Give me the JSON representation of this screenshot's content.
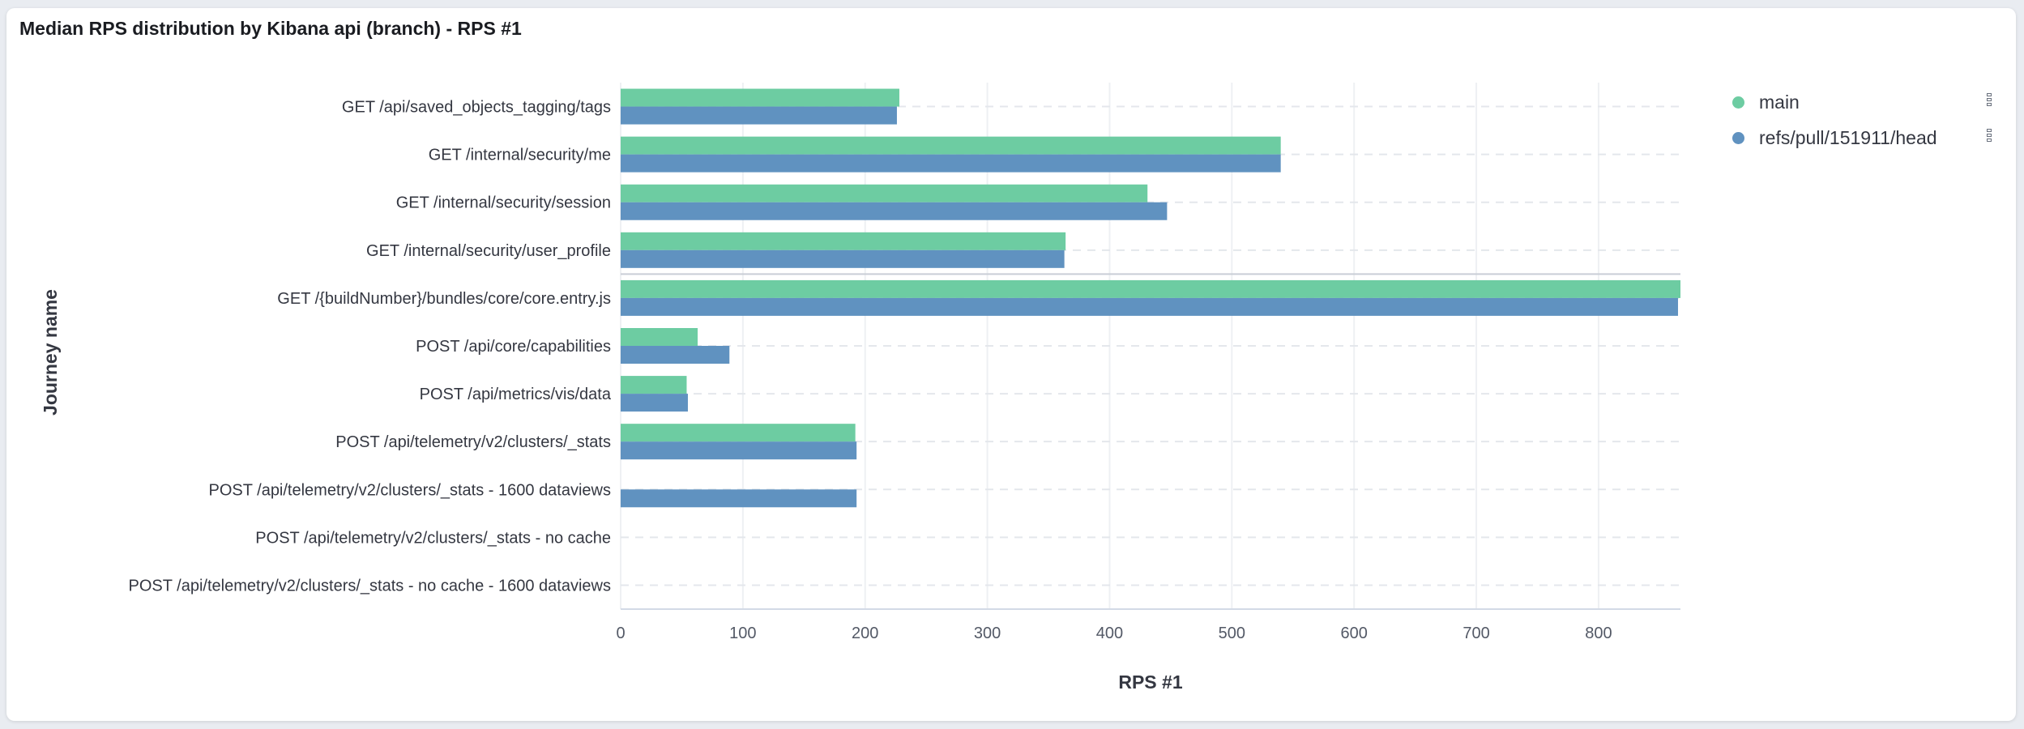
{
  "panel": {
    "title": "Median RPS distribution by Kibana api (branch) - RPS #1"
  },
  "legend": {
    "items": [
      {
        "label": "main",
        "color": "#6dcca2"
      },
      {
        "label": "refs/pull/151911/head",
        "color": "#6092c0"
      }
    ],
    "menu_icon": "vertical-dots-icon"
  },
  "chart_data": {
    "type": "bar",
    "orientation": "horizontal",
    "categories": [
      "GET /api/saved_objects_tagging/tags",
      "GET /internal/security/me",
      "GET /internal/security/session",
      "GET /internal/security/user_profile",
      "GET /{buildNumber}/bundles/core/core.entry.js",
      "POST /api/core/capabilities",
      "POST /api/metrics/vis/data",
      "POST /api/telemetry/v2/clusters/_stats",
      "POST /api/telemetry/v2/clusters/_stats - 1600 dataviews",
      "POST /api/telemetry/v2/clusters/_stats - no cache",
      "POST /api/telemetry/v2/clusters/_stats - no cache - 1600 dataviews"
    ],
    "series": [
      {
        "name": "main",
        "color": "#6dcca2",
        "values": [
          228,
          540,
          431,
          364,
          867,
          63,
          54,
          192,
          null,
          null,
          null
        ]
      },
      {
        "name": "refs/pull/151911/head",
        "color": "#6092c0",
        "values": [
          226,
          540,
          447,
          363,
          865,
          89,
          55,
          193,
          193,
          null,
          null
        ]
      }
    ],
    "xlabel": "RPS #1",
    "ylabel": "Journey name",
    "xlim": [
      0,
      867
    ],
    "xticks": [
      0,
      100,
      200,
      300,
      400,
      500,
      600,
      700,
      800
    ],
    "grid": true,
    "legend_position": "right"
  }
}
